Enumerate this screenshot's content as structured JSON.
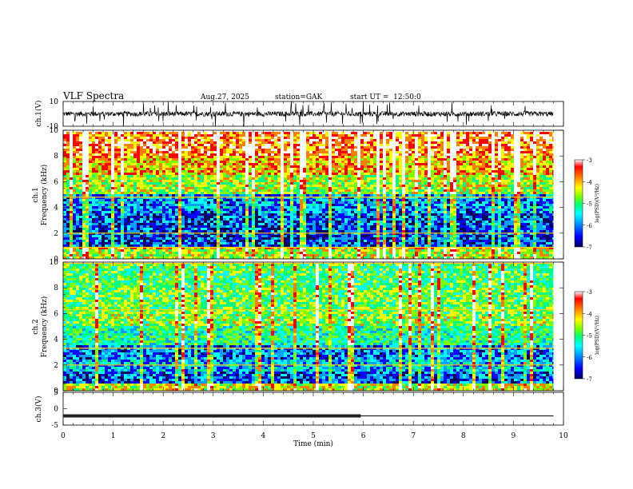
{
  "header": {
    "title": "VLF Spectra",
    "date": "Aug.27, 2025",
    "station": "station=GAK",
    "start": "start UT =  12:50:0"
  },
  "colors": {
    "waveform": "#000000",
    "background": "#ffffff",
    "colormap": [
      "#00005a",
      "#0000ff",
      "#00a0ff",
      "#00ffff",
      "#00ff80",
      "#80ff00",
      "#ffff00",
      "#ff8000",
      "#ff0000",
      "#ffffff"
    ]
  },
  "chart_data": [
    {
      "type": "line",
      "panel": "ch1-waveform",
      "ylabel": "ch.1(V)",
      "ylim": [
        -10,
        10
      ],
      "ytick_labels": [
        "10",
        "-10"
      ],
      "xlim": [
        0,
        10
      ],
      "baseline": 0,
      "data_end_min": 9.8
    },
    {
      "type": "heatmap",
      "panel": "ch1-spectrogram",
      "ylabel": "ch.1\nFrequency (kHz)",
      "ylabel_top": "ch.1",
      "ylabel_bottom": "Frequency (kHz)",
      "ylim": [
        0,
        10
      ],
      "yticks": [
        0,
        2,
        4,
        6,
        8,
        10
      ],
      "ytick_labels": [
        "0",
        "2",
        "4",
        "6",
        "8",
        "10"
      ],
      "xlim": [
        0,
        10
      ],
      "data_end_min": 9.8,
      "colorbar": {
        "range": [
          -7,
          -3
        ],
        "tick_labels": [
          "-3",
          "-4",
          "-5",
          "-6",
          "-7"
        ],
        "label": "log(PSD)(V²/Hz)"
      },
      "bands": [
        {
          "from_khz": 0,
          "to_khz": 0.8,
          "log_psd": -4.6
        },
        {
          "from_khz": 0.8,
          "to_khz": 1.0,
          "log_psd": -4.1
        },
        {
          "from_khz": 1.0,
          "to_khz": 3.5,
          "log_psd": -6.3
        },
        {
          "from_khz": 3.5,
          "to_khz": 5.0,
          "log_psd": -6.0
        },
        {
          "from_khz": 5.0,
          "to_khz": 6.5,
          "log_psd": -4.7
        },
        {
          "from_khz": 6.5,
          "to_khz": 8.0,
          "log_psd": -4.2
        },
        {
          "from_khz": 8.0,
          "to_khz": 10.0,
          "log_psd": -3.8
        }
      ],
      "lines_khz": [
        0.9,
        2.0,
        4.8
      ]
    },
    {
      "type": "heatmap",
      "panel": "ch2-spectrogram",
      "ylabel": "ch.2\nFrequency (kHz)",
      "ylabel_top": "ch.2",
      "ylabel_bottom": "Frequency (kHz)",
      "ylim": [
        0,
        10
      ],
      "yticks": [
        0,
        2,
        4,
        6,
        8,
        10
      ],
      "ytick_labels": [
        "0",
        "2",
        "4",
        "6",
        "8",
        "10"
      ],
      "xlim": [
        0,
        10
      ],
      "data_end_min": 9.8,
      "colorbar": {
        "range": [
          -7,
          -3
        ],
        "tick_labels": [
          "-3",
          "-4",
          "-5",
          "-6",
          "-7"
        ],
        "label": "log(PSD)(V²/Hz)"
      },
      "bands": [
        {
          "from_khz": 0,
          "to_khz": 0.5,
          "log_psd": -4.5
        },
        {
          "from_khz": 0.5,
          "to_khz": 1.5,
          "log_psd": -6.2
        },
        {
          "from_khz": 1.5,
          "to_khz": 2.5,
          "log_psd": -5.8
        },
        {
          "from_khz": 2.5,
          "to_khz": 3.5,
          "log_psd": -6.1
        },
        {
          "from_khz": 3.5,
          "to_khz": 5.0,
          "log_psd": -5.3
        },
        {
          "from_khz": 5.0,
          "to_khz": 6.0,
          "log_psd": -4.8
        },
        {
          "from_khz": 6.0,
          "to_khz": 8.0,
          "log_psd": -4.9
        },
        {
          "from_khz": 8.0,
          "to_khz": 10.0,
          "log_psd": -5.1
        }
      ],
      "lines_khz": [
        2.0,
        3.3,
        6.3,
        9.9
      ]
    },
    {
      "type": "line",
      "panel": "ch3-waveform",
      "ylabel": "ch.3(V)",
      "ylim": [
        -5,
        5
      ],
      "yticks": [
        5,
        0,
        -5
      ],
      "ytick_labels": [
        "5",
        "0",
        "-5"
      ],
      "xlim": [
        0,
        10
      ],
      "baseline": -2.2,
      "thick_until_min": 5.95,
      "data_end_min": 9.8
    },
    {
      "type": "axis",
      "panel": "time-axis",
      "xlabel": "Time (min)",
      "xticks": [
        0,
        1,
        2,
        3,
        4,
        5,
        6,
        7,
        8,
        9,
        10
      ],
      "xtick_labels": [
        "0",
        "1",
        "2",
        "3",
        "4",
        "5",
        "6",
        "7",
        "8",
        "9",
        "10"
      ]
    }
  ]
}
